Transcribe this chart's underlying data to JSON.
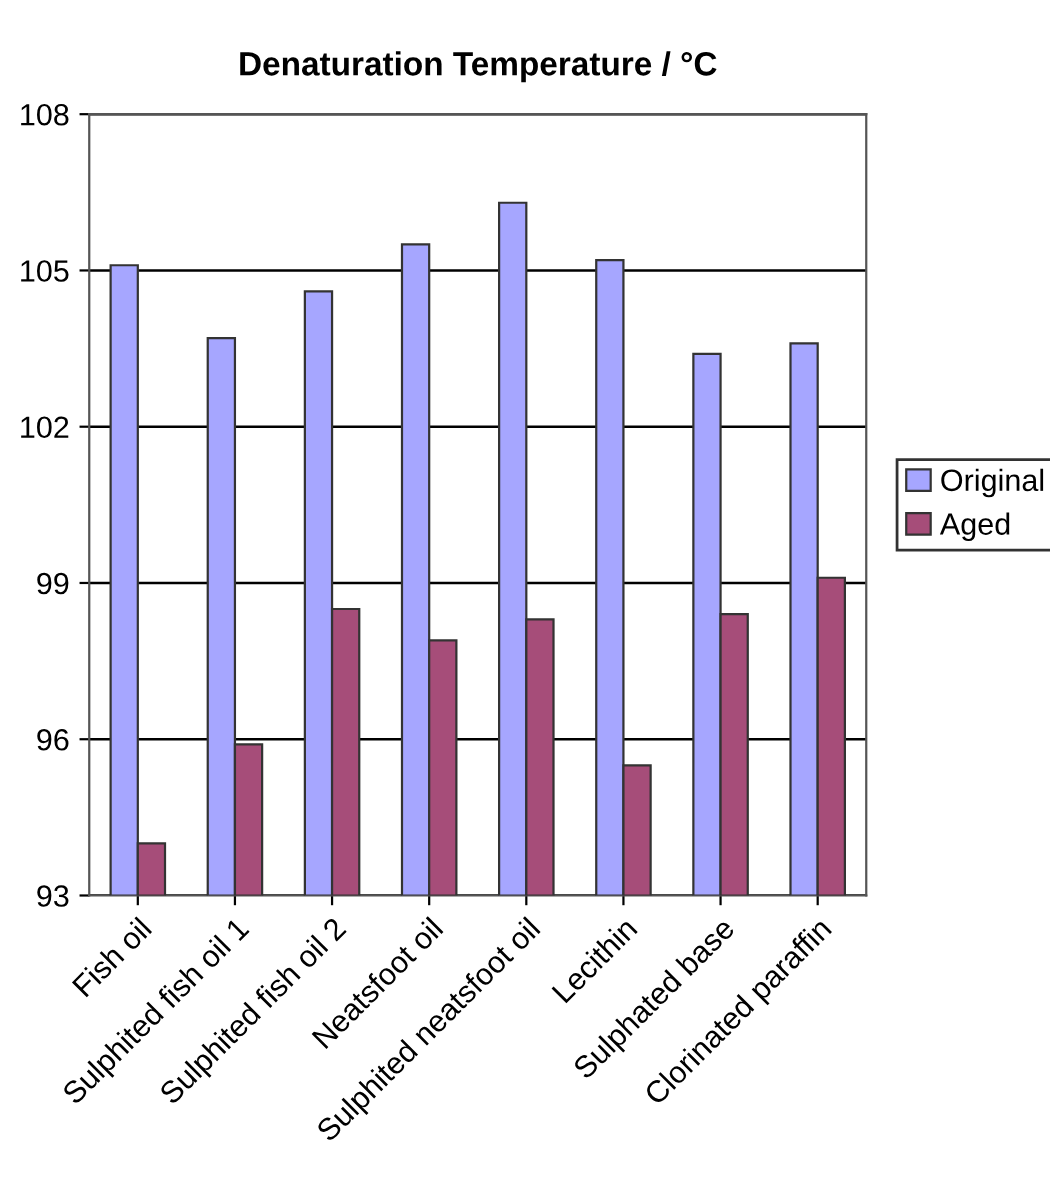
{
  "chart_data": {
    "type": "bar",
    "title": "Denaturation Temperature / °C",
    "categories": [
      "Fish oil",
      "Sulphited fish oil 1",
      "Sulphited fish oil 2",
      "Neatsfoot oil",
      "Sulphited neatsfoot oil",
      "Lecithin",
      "Sulphated base",
      "Clorinated paraffin"
    ],
    "series": [
      {
        "name": "Original",
        "color": "#a6a6ff",
        "values": [
          105.1,
          103.7,
          104.6,
          105.5,
          106.3,
          105.2,
          103.4,
          103.6
        ]
      },
      {
        "name": "Aged",
        "color": "#a64d79",
        "values": [
          94.0,
          95.9,
          98.5,
          97.9,
          98.3,
          95.5,
          98.4,
          99.1
        ]
      }
    ],
    "ylim": [
      93,
      108
    ],
    "yticks": [
      93,
      96,
      99,
      102,
      105,
      108
    ],
    "grid": "y",
    "legend": "right"
  }
}
